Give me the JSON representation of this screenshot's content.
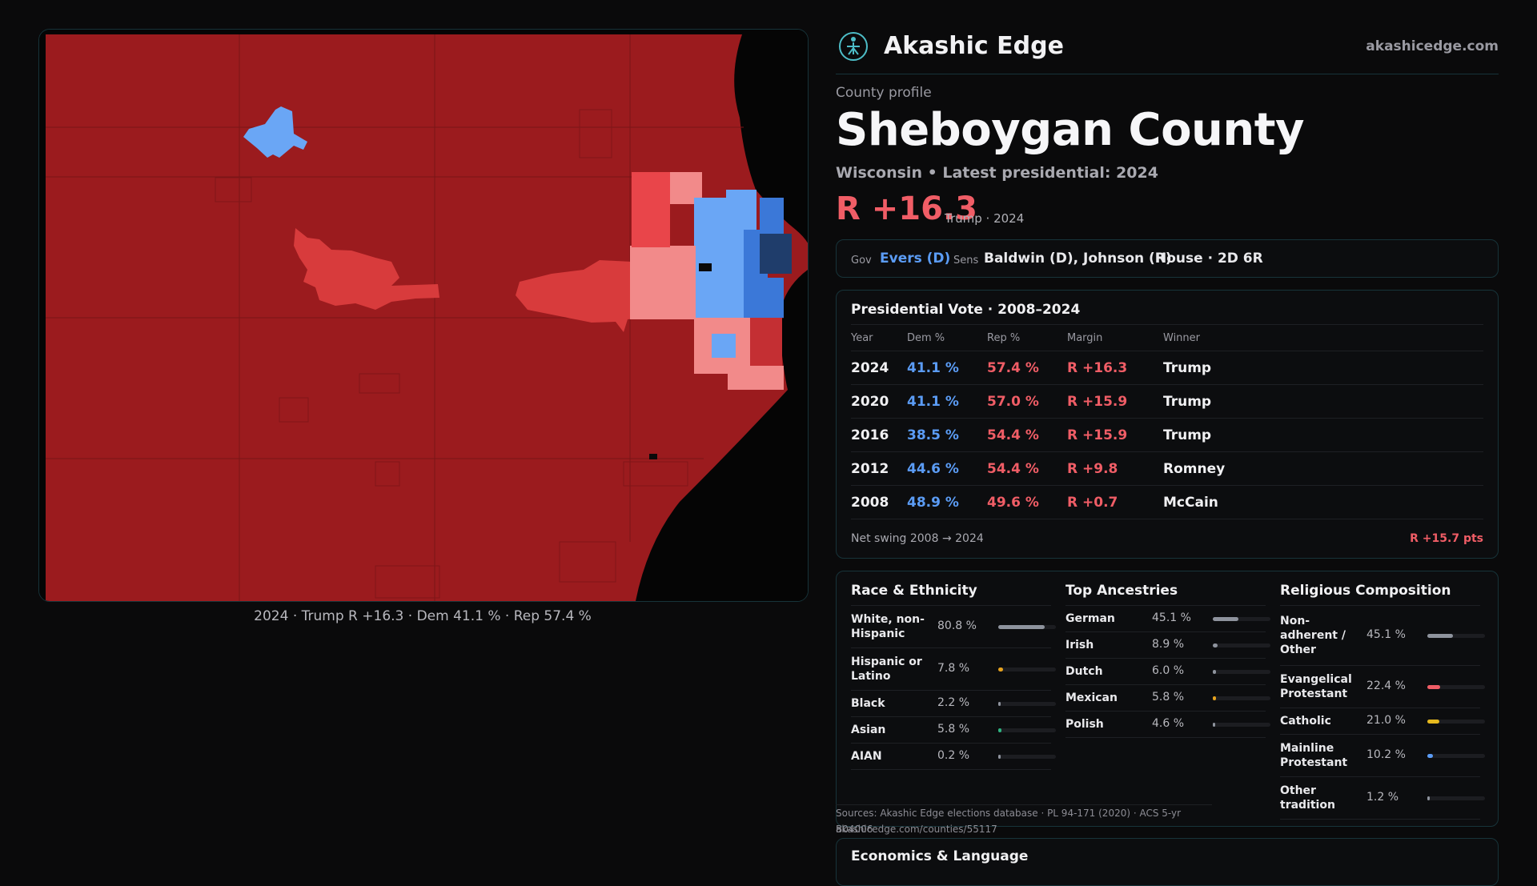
{
  "brand": {
    "name": "Akashic Edge",
    "url": "akashicedge.com"
  },
  "profile": {
    "kicker": "County profile",
    "title": "Sheboygan County",
    "subtitle": "Wisconsin • Latest presidential: 2024",
    "margin": "R +16.3",
    "margin_detail": "Trump · 2024"
  },
  "officials": {
    "gov_label": "Gov",
    "gov_value": "Evers (D)",
    "sens_label": "Sens",
    "sens_value": "Baldwin (D), Johnson (R)",
    "house_value": "House · 2D 6R"
  },
  "presidential": {
    "title": "Presidential Vote · 2008–2024",
    "headers": [
      "Year",
      "Dem %",
      "Rep %",
      "Margin",
      "Winner"
    ],
    "rows": [
      {
        "year": "2024",
        "dem": "41.1 %",
        "rep": "57.4 %",
        "margin": "R +16.3",
        "winner": "Trump"
      },
      {
        "year": "2020",
        "dem": "41.1 %",
        "rep": "57.0 %",
        "margin": "R +15.9",
        "winner": "Trump"
      },
      {
        "year": "2016",
        "dem": "38.5 %",
        "rep": "54.4 %",
        "margin": "R +15.9",
        "winner": "Trump"
      },
      {
        "year": "2012",
        "dem": "44.6 %",
        "rep": "54.4 %",
        "margin": "R +9.8",
        "winner": "Romney"
      },
      {
        "year": "2008",
        "dem": "48.9 %",
        "rep": "49.6 %",
        "margin": "R +0.7",
        "winner": "McCain"
      }
    ],
    "swing_label": "Net swing 2008 → 2024",
    "swing_value": "R +15.7 pts"
  },
  "race": {
    "title": "Race & Ethnicity",
    "items": [
      {
        "label": "White, non-\nHispanic",
        "value": "80.8 %",
        "fraction": 0.808,
        "color": "#8e939d"
      },
      {
        "label": "Hispanic or\nLatino",
        "value": "7.8 %",
        "fraction": 0.078,
        "color": "#e6a21e"
      },
      {
        "label": "Black",
        "value": "2.2 %",
        "fraction": 0.022,
        "color": "#8e939d"
      },
      {
        "label": "Asian",
        "value": "5.8 %",
        "fraction": 0.058,
        "color": "#2fb380"
      },
      {
        "label": "AIAN",
        "value": "0.2 %",
        "fraction": 0.002,
        "color": "#8e939d"
      }
    ]
  },
  "ancestry": {
    "title": "Top Ancestries",
    "items": [
      {
        "label": "German",
        "value": "45.1 %",
        "fraction": 0.451,
        "color": "#8e939d"
      },
      {
        "label": "Irish",
        "value": "8.9 %",
        "fraction": 0.089,
        "color": "#8e939d"
      },
      {
        "label": "Dutch",
        "value": "6.0 %",
        "fraction": 0.06,
        "color": "#8e939d"
      },
      {
        "label": "Mexican",
        "value": "5.8 %",
        "fraction": 0.058,
        "color": "#e6a21e"
      },
      {
        "label": "Polish",
        "value": "4.6 %",
        "fraction": 0.046,
        "color": "#8e939d"
      }
    ]
  },
  "religion": {
    "title": "Religious Composition",
    "items": [
      {
        "label": "Non-\nadherent /\nOther",
        "value": "45.1 %",
        "fraction": 0.451,
        "color": "#8e939d"
      },
      {
        "label": "Evangelical\nProtestant",
        "value": "22.4 %",
        "fraction": 0.224,
        "color": "#f05d66"
      },
      {
        "label": "Catholic",
        "value": "21.0 %",
        "fraction": 0.21,
        "color": "#e6b91e"
      },
      {
        "label": "Mainline\nProtestant",
        "value": "10.2 %",
        "fraction": 0.102,
        "color": "#5b9cf5"
      },
      {
        "label": "Other\ntradition",
        "value": "1.2 %",
        "fraction": 0.012,
        "color": "#8e939d"
      }
    ]
  },
  "sources": {
    "line1": "Sources: Akashic Edge elections database · PL 94-171 (2020) · ACS 5-yr B04006",
    "line2": "akashicedge.com/counties/55117"
  },
  "economics": {
    "title": "Economics & Language"
  },
  "map": {
    "caption": "2024 · Trump R +16.3 · Dem 41.1 % · Rep 57.4 %",
    "colors": {
      "solid_r": "#9b1b1e",
      "mid_r": "#d83b3c",
      "light_r": "#f28a8a",
      "light_d": "#6aa6f5",
      "mid_d": "#3b78d8",
      "dark_d": "#1f3d6b",
      "water": "#050505"
    }
  }
}
